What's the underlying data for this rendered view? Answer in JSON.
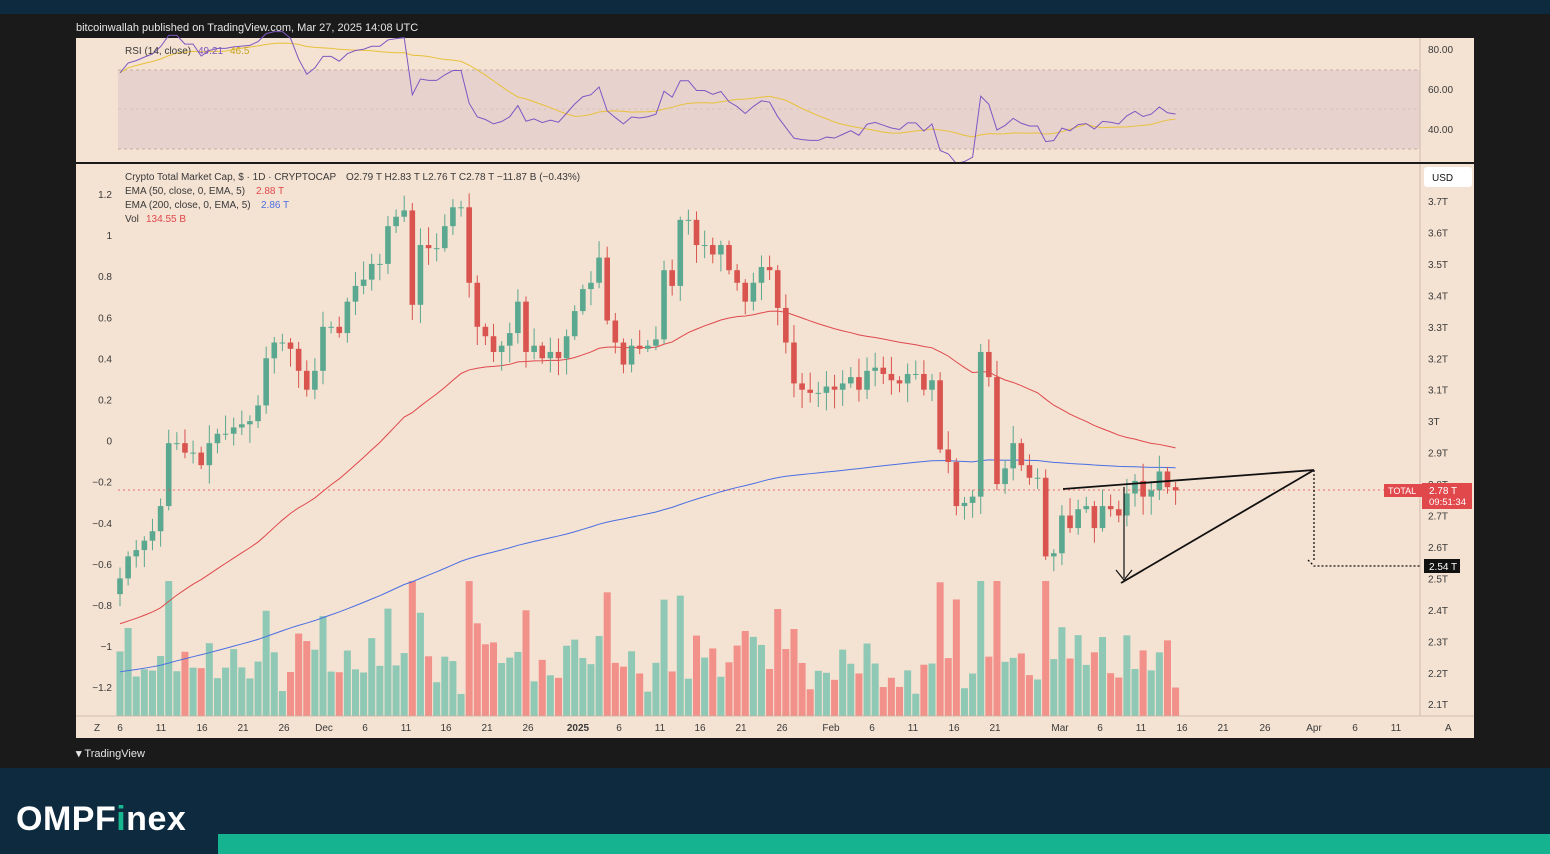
{
  "header": {
    "attribution": "bitcoinwallah published on TradingView.com, Mar 27, 2025 14:08 UTC"
  },
  "footer": {
    "tv_logo": "TradingView",
    "brand_part1": "OMPF",
    "brand_accent": "i",
    "brand_part2": "nex"
  },
  "colors": {
    "bull": "#5aa890",
    "bear": "#d9534f",
    "ema50": "#e0484c",
    "ema200": "#4a6fe3",
    "rsi": "#7e57c2",
    "rsi_ma": "#e8c13a",
    "vol_bull": "#8fc9b6",
    "vol_bear": "#f2908a",
    "panel_bg": "#f4e2d2"
  },
  "rsi_panel": {
    "legend": "RSI (14, close)",
    "value": "49.21",
    "ma_value": "46.5",
    "ticks": [
      "80.00",
      "60.00",
      "40.00"
    ]
  },
  "main_panel": {
    "symbol_line": "Crypto Total Market Cap, $ · 1D · CRYPTOCAP",
    "ohlc": "O2.79 T  H2.83 T  L2.76 T  C2.78 T  −11.87 B (−0.43%)",
    "ema50_label": "EMA (50, close, 0, EMA, 5)",
    "ema50_value": "2.88 T",
    "ema200_label": "EMA (200, close, 0, EMA, 5)",
    "ema200_value": "2.86 T",
    "vol_label": "Vol",
    "vol_value": "134.55 B",
    "currency_button": "USD",
    "price_tag_label": "TOTAL",
    "price_tag_value": "2.78 T",
    "price_tag_timer": "09:51:34",
    "target_tag": "2.54 T",
    "right_ticks": [
      "3.7T",
      "3.6T",
      "3.5T",
      "3.4T",
      "3.3T",
      "3.2T",
      "3.1T",
      "3T",
      "2.9T",
      "2.8T",
      "2.7T",
      "2.6T",
      "2.5T",
      "2.4T",
      "2.3T",
      "2.2T",
      "2.1T"
    ],
    "left_ticks": [
      "1.2",
      "1",
      "0.8",
      "0.6",
      "0.4",
      "0.2",
      "0",
      "−0.2",
      "−0.4",
      "−0.6",
      "−0.8",
      "−1",
      "−1.2"
    ],
    "x_ticks": [
      "6",
      "11",
      "16",
      "21",
      "26",
      "Dec",
      "6",
      "11",
      "16",
      "21",
      "26",
      "2025",
      "6",
      "11",
      "16",
      "21",
      "26",
      "Feb",
      "6",
      "11",
      "16",
      "21",
      "Mar",
      "6",
      "11",
      "16",
      "21",
      "26",
      "Apr",
      "6",
      "11"
    ],
    "corner_left": "Z",
    "corner_right": "A"
  },
  "chart_data": {
    "type": "candlestick",
    "title": "Crypto Total Market Cap, $ · 1D · CRYPTOCAP",
    "ylabel": "USD",
    "ylim": [
      2.05,
      3.8
    ],
    "note_values": "daily close in trillions USD, Nov 2024 – Mar 27 2025 (approx.)",
    "closes": [
      2.5,
      2.57,
      2.59,
      2.62,
      2.65,
      2.73,
      2.93,
      2.93,
      2.9,
      2.9,
      2.86,
      2.93,
      2.96,
      2.96,
      2.98,
      2.99,
      3.0,
      3.05,
      3.2,
      3.25,
      3.25,
      3.23,
      3.16,
      3.1,
      3.16,
      3.3,
      3.3,
      3.28,
      3.38,
      3.43,
      3.45,
      3.5,
      3.5,
      3.62,
      3.65,
      3.67,
      3.37,
      3.56,
      3.55,
      3.55,
      3.62,
      3.68,
      3.68,
      3.44,
      3.3,
      3.27,
      3.22,
      3.24,
      3.28,
      3.38,
      3.22,
      3.24,
      3.2,
      3.22,
      3.2,
      3.27,
      3.35,
      3.42,
      3.44,
      3.52,
      3.32,
      3.25,
      3.18,
      3.24,
      3.23,
      3.24,
      3.26,
      3.48,
      3.43,
      3.64,
      3.64,
      3.56,
      3.56,
      3.53,
      3.56,
      3.48,
      3.44,
      3.38,
      3.44,
      3.49,
      3.48,
      3.36,
      3.25,
      3.12,
      3.1,
      3.09,
      3.09,
      3.11,
      3.1,
      3.12,
      3.14,
      3.1,
      3.16,
      3.17,
      3.15,
      3.13,
      3.12,
      3.15,
      3.15,
      3.1,
      3.13,
      2.91,
      2.87,
      2.73,
      2.74,
      2.76,
      3.22,
      3.14,
      2.8,
      2.85,
      2.93,
      2.86,
      2.82,
      2.82,
      2.57,
      2.58,
      2.7,
      2.66,
      2.72,
      2.73,
      2.66,
      2.73,
      2.72,
      2.7,
      2.77,
      2.81,
      2.76,
      2.78,
      2.84,
      2.79,
      2.78
    ],
    "ema50_last": 2.88,
    "ema200_last": 2.86,
    "pattern": "rising wedge",
    "target": 2.54
  }
}
